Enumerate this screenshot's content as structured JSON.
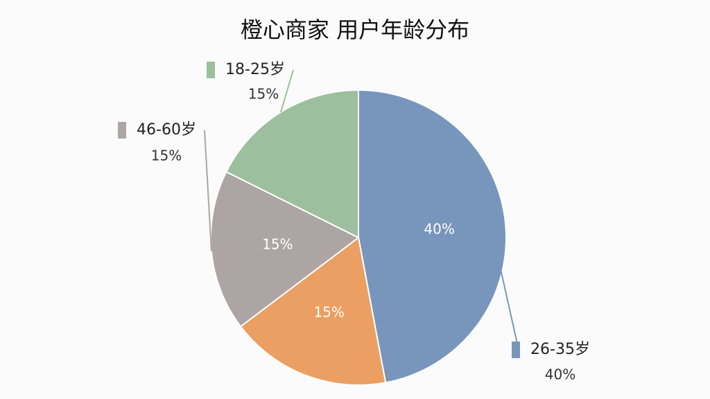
{
  "chart_data": {
    "type": "pie",
    "title": "橙心商家 用户年龄分布",
    "categories": [
      "26-35岁",
      null,
      "46-60岁",
      "18-25岁"
    ],
    "values": [
      40,
      15,
      15,
      15
    ],
    "value_labels": [
      "40%",
      "15%",
      "15%",
      "15%"
    ],
    "colors": [
      "#7896bc",
      "#eb9f62",
      "#aca5a3",
      "#9cbf9e"
    ]
  }
}
